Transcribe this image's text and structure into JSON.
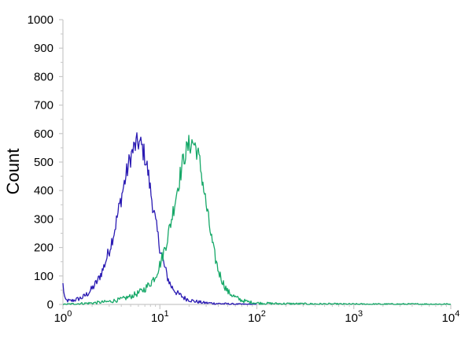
{
  "chart_data": {
    "type": "line",
    "title": "",
    "xlabel": "",
    "ylabel": "Count",
    "x_scale": "log",
    "xlim": [
      1,
      10000
    ],
    "ylim": [
      0,
      1000
    ],
    "grid": false,
    "legend": "none",
    "x_ticks": [
      {
        "value": 1,
        "base": "10",
        "exp": "0"
      },
      {
        "value": 10,
        "base": "10",
        "exp": "1"
      },
      {
        "value": 100,
        "base": "10",
        "exp": "2"
      },
      {
        "value": 1000,
        "base": "10",
        "exp": "3"
      },
      {
        "value": 10000,
        "base": "10",
        "exp": "4"
      }
    ],
    "y_ticks": [
      {
        "value": 0,
        "label": "0"
      },
      {
        "value": 100,
        "label": "100"
      },
      {
        "value": 200,
        "label": "200"
      },
      {
        "value": 300,
        "label": "300"
      },
      {
        "value": 400,
        "label": "400"
      },
      {
        "value": 500,
        "label": "500"
      },
      {
        "value": 600,
        "label": "600"
      },
      {
        "value": 700,
        "label": "700"
      },
      {
        "value": 800,
        "label": "800"
      },
      {
        "value": 900,
        "label": "900"
      },
      {
        "value": 1000,
        "label": "1000"
      }
    ],
    "series": [
      {
        "color": "#2b1bb3",
        "x": [
          1.0,
          1.05,
          1.2,
          1.4,
          1.6,
          1.8,
          2.0,
          2.3,
          2.6,
          3.0,
          3.4,
          3.8,
          4.2,
          4.6,
          5.0,
          5.5,
          6.0,
          6.5,
          7.0,
          7.5,
          8.0,
          9.0,
          10.0,
          11.0,
          12.0,
          13.0,
          15.0,
          18.0,
          22.0,
          28.0,
          40.0,
          60.0,
          100.0
        ],
        "values": [
          70,
          15,
          12,
          18,
          25,
          38,
          55,
          85,
          125,
          190,
          260,
          340,
          410,
          470,
          520,
          555,
          570,
          555,
          520,
          470,
          400,
          290,
          200,
          140,
          95,
          65,
          40,
          22,
          12,
          6,
          3,
          1,
          0
        ]
      },
      {
        "color": "#16a868",
        "x": [
          1.0,
          2.0,
          3.0,
          4.0,
          5.0,
          6.0,
          7.0,
          8.0,
          9.0,
          10.0,
          11.0,
          12.0,
          13.0,
          14.0,
          15.0,
          16.0,
          17.0,
          18.0,
          20.0,
          22.0,
          24.0,
          26.0,
          28.0,
          30.0,
          33.0,
          36.0,
          40.0,
          45.0,
          50.0,
          60.0,
          70.0,
          85.0,
          100.0,
          150.0,
          300.0,
          1000.0,
          10000.0
        ],
        "values": [
          0,
          5,
          10,
          18,
          28,
          40,
          55,
          75,
          100,
          140,
          185,
          235,
          290,
          345,
          400,
          445,
          490,
          525,
          560,
          570,
          545,
          490,
          420,
          350,
          260,
          185,
          120,
          75,
          45,
          25,
          14,
          8,
          5,
          3,
          2,
          1,
          1
        ]
      }
    ]
  }
}
